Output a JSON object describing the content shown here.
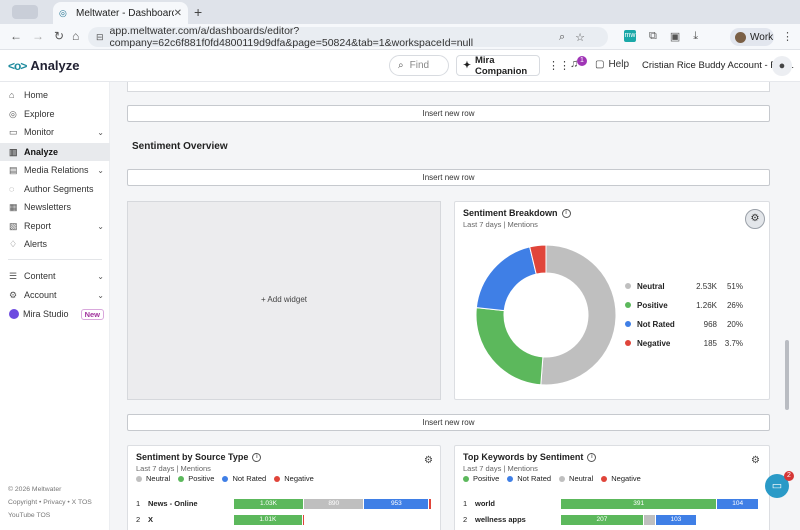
{
  "browser": {
    "tab_title": "Meltwater - Dashboard",
    "tab_close": "✕",
    "new_tab": "+",
    "url": "app.meltwater.com/a/dashboards/editor?company=62c6f881f0fd4800119d9dfa&page=50824&tab=1&workspaceId=null",
    "profile_label": "Work"
  },
  "header": {
    "app_name": "Analyze",
    "find_placeholder": "Find",
    "mira_label": "Mira Companion",
    "notification_count": "1",
    "help_label": "Help",
    "account_name": "Cristian Rice Buddy Account - Fair..."
  },
  "sidebar": {
    "items": [
      {
        "label": "Home",
        "icon": "home-icon",
        "glyph": "⌂"
      },
      {
        "label": "Explore",
        "icon": "compass-icon",
        "glyph": "◎"
      },
      {
        "label": "Monitor",
        "icon": "monitor-icon",
        "glyph": "▭"
      },
      {
        "label": "Analyze",
        "icon": "chart-icon",
        "glyph": "▥"
      },
      {
        "label": "Media Relations",
        "icon": "media-icon",
        "glyph": "▤"
      },
      {
        "label": "Author Segments",
        "icon": "people-icon",
        "glyph": "◌"
      },
      {
        "label": "Newsletters",
        "icon": "newsletter-icon",
        "glyph": "▦"
      },
      {
        "label": "Report",
        "icon": "report-icon",
        "glyph": "▧"
      },
      {
        "label": "Alerts",
        "icon": "bell-icon",
        "glyph": "♢"
      },
      {
        "label": "Content",
        "icon": "content-icon",
        "glyph": "☰"
      },
      {
        "label": "Account",
        "icon": "gear-icon",
        "glyph": "⚙"
      },
      {
        "label": "Mira Studio",
        "icon": "mira-icon",
        "badge": "New"
      }
    ],
    "footer_copyright": "© 2026 Meltwater",
    "footer_links": "Copyright • Privacy • X TOS",
    "footer_youtube": "YouTube TOS"
  },
  "main": {
    "insert_row_label": "Insert new row",
    "section_title": "Sentiment Overview",
    "add_widget_label": "+ Add widget"
  },
  "sentiment_breakdown": {
    "title": "Sentiment Breakdown",
    "subtitle": "Last 7 days | Mentions",
    "colors": {
      "Neutral": "#bfbfbf",
      "Positive": "#5cb85c",
      "Not Rated": "#3f7fe6",
      "Negative": "#e0453a"
    }
  },
  "source_type": {
    "title": "Sentiment by Source Type",
    "subtitle": "Last 7 days | Mentions",
    "legend": [
      "Neutral",
      "Positive",
      "Not Rated",
      "Negative"
    ]
  },
  "top_keywords": {
    "title": "Top Keywords by Sentiment",
    "subtitle": "Last 7 days | Mentions",
    "legend": [
      "Positive",
      "Not Rated",
      "Neutral",
      "Negative"
    ]
  },
  "chart_data": [
    {
      "type": "pie",
      "title": "Sentiment Breakdown",
      "categories": [
        "Neutral",
        "Positive",
        "Not Rated",
        "Negative"
      ],
      "values": [
        2530,
        1260,
        968,
        185
      ],
      "labels": [
        "2.53K",
        "1.26K",
        "968",
        "185"
      ],
      "percents": [
        "51%",
        "26%",
        "20%",
        "3.7%"
      ],
      "legend": "right"
    },
    {
      "type": "bar",
      "title": "Sentiment by Source Type",
      "categories": [
        "News - Online",
        "X"
      ],
      "series": [
        {
          "name": "Positive",
          "values": [
            1030,
            1010
          ],
          "labels": [
            "1.03K",
            "1.01K"
          ]
        },
        {
          "name": "Neutral",
          "values": [
            890,
            0
          ],
          "labels": [
            "890",
            ""
          ]
        },
        {
          "name": "Not Rated",
          "values": [
            953,
            0
          ],
          "labels": [
            "953",
            ""
          ]
        },
        {
          "name": "Negative",
          "values": [
            40,
            30
          ],
          "labels": [
            "",
            ""
          ]
        }
      ],
      "legend": "top"
    },
    {
      "type": "bar",
      "title": "Top Keywords by Sentiment",
      "categories": [
        "world",
        "wellness apps"
      ],
      "series": [
        {
          "name": "Positive",
          "values": [
            391,
            207
          ],
          "labels": [
            "391",
            "207"
          ]
        },
        {
          "name": "Not Rated",
          "values": [
            104,
            103
          ],
          "labels": [
            "104",
            "103"
          ]
        },
        {
          "name": "Neutral",
          "values": [
            0,
            30
          ],
          "labels": [
            "",
            ""
          ]
        },
        {
          "name": "Negative",
          "values": [
            0,
            0
          ],
          "labels": [
            "",
            ""
          ]
        }
      ],
      "legend": "top"
    }
  ]
}
